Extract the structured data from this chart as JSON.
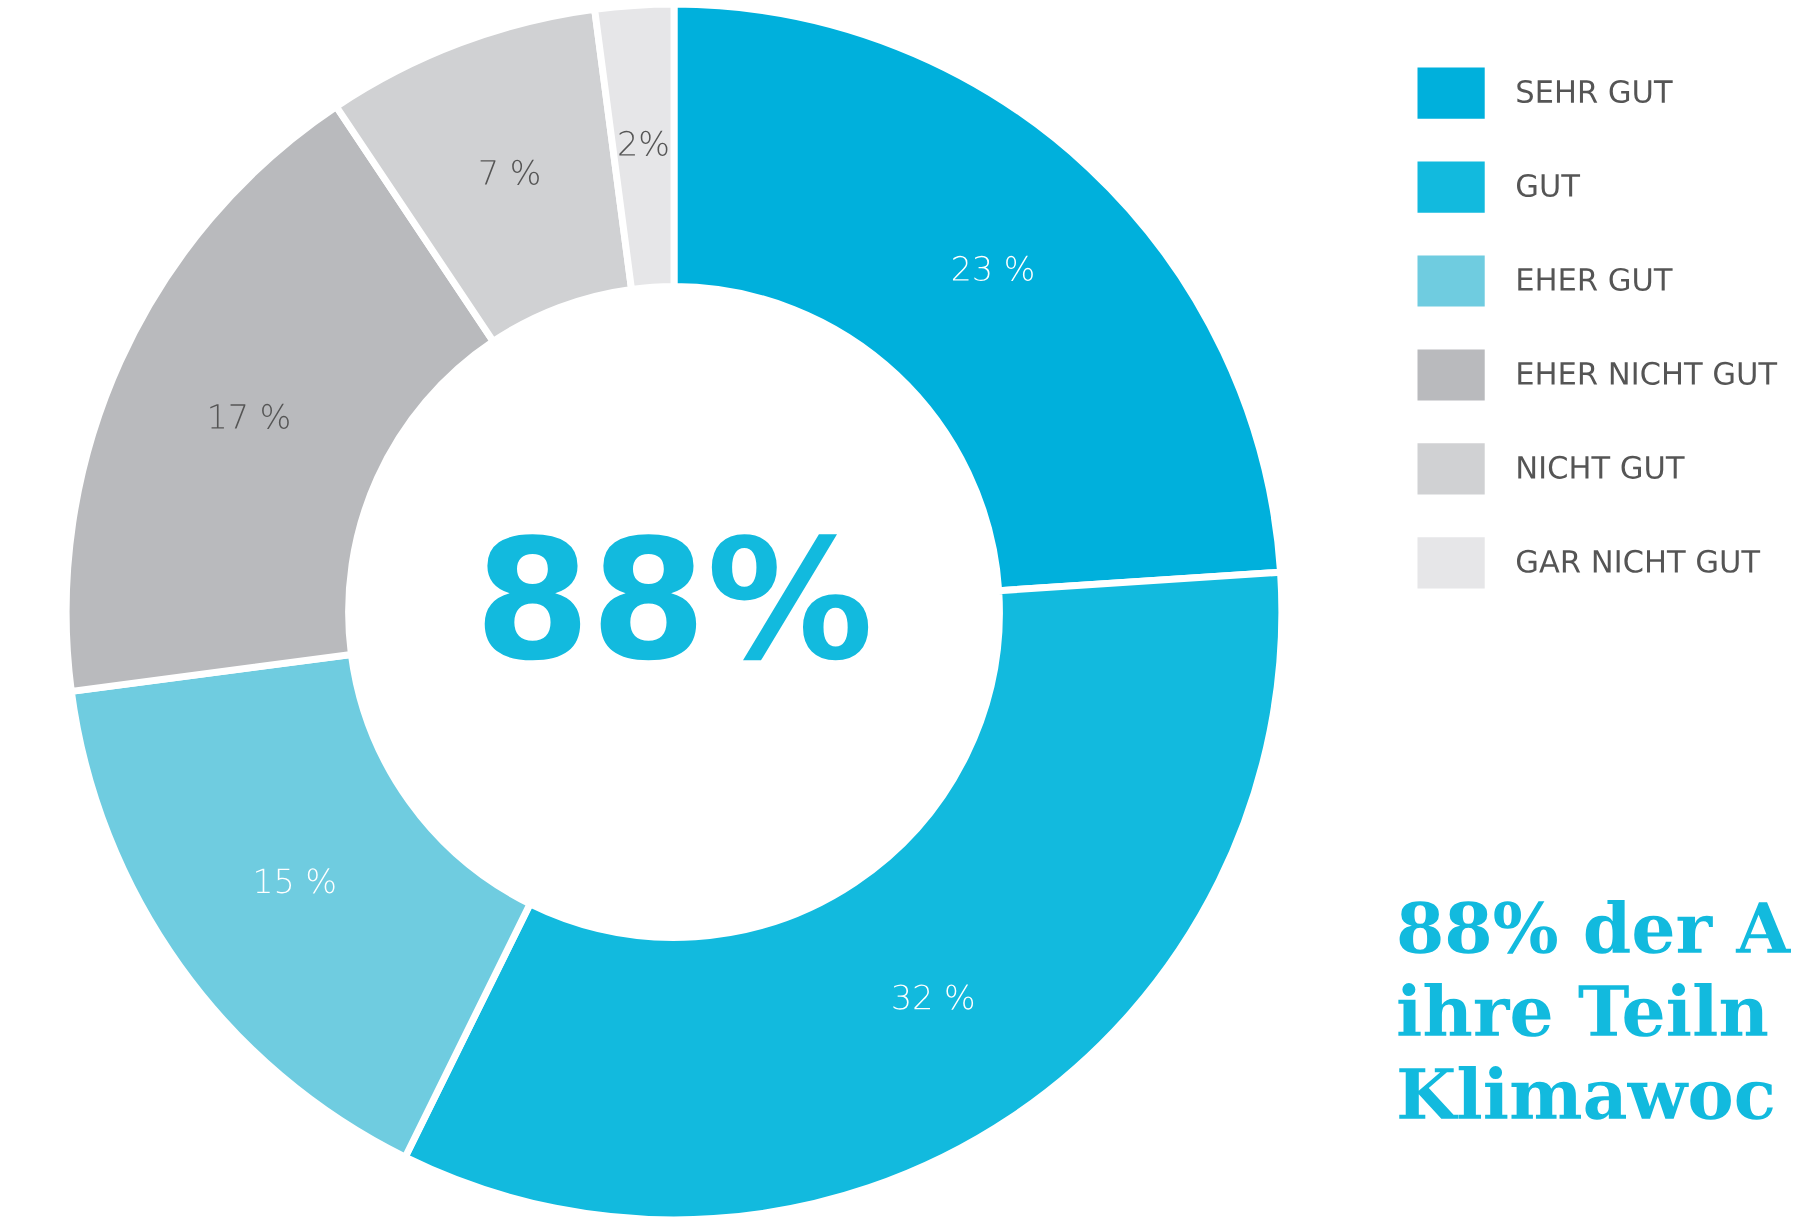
{
  "chart_data": {
    "type": "donut",
    "categories": [
      "SEHR GUT",
      "GUT",
      "EHER GUT",
      "EHER NICHT GUT",
      "NICHT GUT",
      "GAR NICHT GUT"
    ],
    "values": [
      23,
      32,
      15,
      17,
      7,
      2
    ],
    "colors": [
      "#00b0dc",
      "#12bade",
      "#6fcce0",
      "#b9babd",
      "#d0d1d3",
      "#e6e6e8"
    ],
    "value_labels": [
      "23 %",
      "32 %",
      "15 %",
      "17 %",
      "7 %",
      "2%"
    ],
    "legend": "top right",
    "annotations": [
      "88%",
      "88% der A\nihre Teiln\nKlimawoc"
    ]
  }
}
